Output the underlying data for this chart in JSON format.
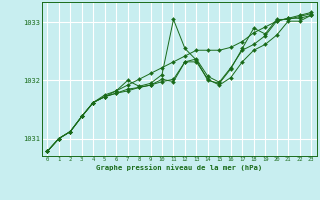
{
  "title": "Graphe pression niveau de la mer (hPa)",
  "background_color": "#c8eef0",
  "plot_bg_color": "#c8eef0",
  "grid_color": "#aadddd",
  "line_color": "#1a6b1a",
  "marker_color": "#1a6b1a",
  "xlim": [
    -0.5,
    23.5
  ],
  "ylim": [
    1030.7,
    1033.35
  ],
  "yticks": [
    1031,
    1032,
    1033
  ],
  "xticks": [
    0,
    1,
    2,
    3,
    4,
    5,
    6,
    7,
    8,
    9,
    10,
    11,
    12,
    13,
    14,
    15,
    16,
    17,
    18,
    19,
    20,
    21,
    22,
    23
  ],
  "series": [
    [
      1030.78,
      1031.0,
      1031.12,
      1031.38,
      1031.62,
      1031.75,
      1031.82,
      1032.0,
      1031.9,
      1031.95,
      1032.1,
      1033.05,
      1032.55,
      1032.35,
      1032.0,
      1031.95,
      1032.2,
      1032.55,
      1032.9,
      1032.8,
      1033.05,
      1033.05,
      1033.1,
      1033.15
    ],
    [
      1030.78,
      1031.0,
      1031.12,
      1031.38,
      1031.62,
      1031.72,
      1031.78,
      1031.85,
      1031.88,
      1031.92,
      1032.02,
      1031.98,
      1032.32,
      1032.32,
      1032.02,
      1031.92,
      1032.05,
      1032.32,
      1032.52,
      1032.62,
      1032.78,
      1033.02,
      1033.02,
      1033.12
    ],
    [
      1030.78,
      1031.0,
      1031.12,
      1031.38,
      1031.62,
      1031.72,
      1031.82,
      1031.92,
      1032.02,
      1032.12,
      1032.22,
      1032.32,
      1032.42,
      1032.52,
      1032.52,
      1032.52,
      1032.57,
      1032.67,
      1032.82,
      1032.92,
      1033.02,
      1033.07,
      1033.12,
      1033.17
    ],
    [
      1030.78,
      1031.0,
      1031.12,
      1031.38,
      1031.62,
      1031.72,
      1031.78,
      1031.82,
      1031.88,
      1031.92,
      1031.98,
      1032.02,
      1032.32,
      1032.37,
      1032.07,
      1031.97,
      1032.22,
      1032.52,
      1032.62,
      1032.77,
      1033.02,
      1033.07,
      1033.07,
      1033.12
    ]
  ]
}
